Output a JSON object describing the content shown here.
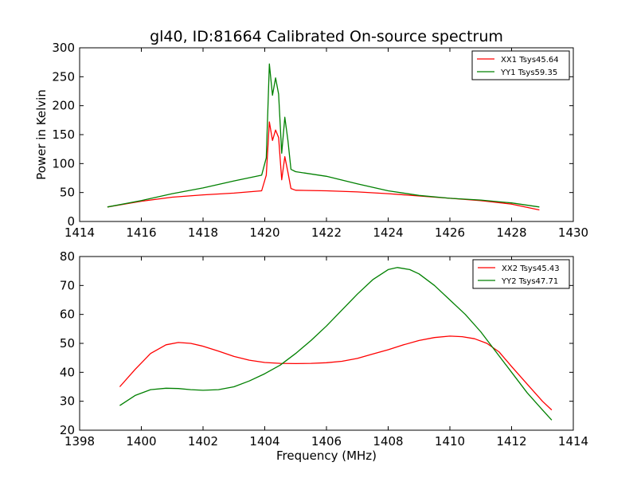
{
  "title": "gl40, ID:81664 Calibrated On-source spectrum",
  "xlabel": "Frequency (MHz)",
  "chart_data": [
    {
      "type": "line",
      "title": "gl40, ID:81664 Calibrated On-source spectrum",
      "xlabel": "",
      "ylabel": "Power in Kelvin",
      "xlim": [
        1414,
        1430
      ],
      "ylim": [
        0,
        300
      ],
      "xticks": [
        1414,
        1416,
        1418,
        1420,
        1422,
        1424,
        1426,
        1428,
        1430
      ],
      "yticks": [
        0,
        50,
        100,
        150,
        200,
        250,
        300
      ],
      "grid": false,
      "legend": "top-right",
      "series": [
        {
          "name": "XX1 Tsys45.64",
          "color": "#ff0000",
          "x": [
            1414.9,
            1416,
            1417,
            1418,
            1419,
            1419.9,
            1420.05,
            1420.15,
            1420.25,
            1420.35,
            1420.45,
            1420.55,
            1420.65,
            1420.75,
            1420.85,
            1421,
            1422,
            1423,
            1424,
            1425,
            1426,
            1427,
            1428,
            1428.9
          ],
          "y": [
            25,
            35,
            42,
            46,
            49,
            53,
            80,
            172,
            140,
            158,
            145,
            72,
            112,
            85,
            57,
            54,
            53,
            51,
            48,
            44,
            40,
            36,
            30,
            20
          ]
        },
        {
          "name": "YY1 Tsys59.35",
          "color": "#008000",
          "x": [
            1414.9,
            1416,
            1417,
            1418,
            1419,
            1419.9,
            1420.05,
            1420.15,
            1420.25,
            1420.35,
            1420.45,
            1420.55,
            1420.65,
            1420.75,
            1420.85,
            1421,
            1422,
            1423,
            1424,
            1425,
            1426,
            1427,
            1428,
            1428.9
          ],
          "y": [
            25,
            36,
            48,
            58,
            70,
            80,
            110,
            272,
            218,
            248,
            220,
            118,
            180,
            140,
            90,
            86,
            78,
            65,
            53,
            45,
            40,
            37,
            32,
            25
          ]
        }
      ]
    },
    {
      "type": "line",
      "title": "",
      "xlabel": "Frequency (MHz)",
      "ylabel": "",
      "xlim": [
        1398,
        1414
      ],
      "ylim": [
        20,
        80
      ],
      "xticks": [
        1398,
        1400,
        1402,
        1404,
        1406,
        1408,
        1410,
        1412,
        1414
      ],
      "yticks": [
        20,
        30,
        40,
        50,
        60,
        70,
        80
      ],
      "grid": false,
      "legend": "top-right",
      "series": [
        {
          "name": "XX2 Tsys45.43",
          "color": "#ff0000",
          "x": [
            1399.3,
            1399.8,
            1400.3,
            1400.8,
            1401.2,
            1401.6,
            1402,
            1402.5,
            1403,
            1403.5,
            1404,
            1404.5,
            1405,
            1405.5,
            1406,
            1406.5,
            1407,
            1407.5,
            1408,
            1408.5,
            1409,
            1409.5,
            1410,
            1410.4,
            1410.8,
            1411.2,
            1411.6,
            1412,
            1412.5,
            1413,
            1413.3
          ],
          "y": [
            35,
            41,
            46.5,
            49.5,
            50.3,
            50,
            49,
            47.3,
            45.5,
            44.2,
            43.4,
            43.1,
            43,
            43.1,
            43.3,
            43.8,
            44.8,
            46.3,
            47.8,
            49.5,
            51,
            52,
            52.5,
            52.3,
            51.6,
            50,
            47,
            42,
            36,
            30,
            27
          ]
        },
        {
          "name": "YY2 Tsys47.71",
          "color": "#008000",
          "x": [
            1399.3,
            1399.8,
            1400.3,
            1400.8,
            1401.2,
            1401.6,
            1402,
            1402.5,
            1403,
            1403.5,
            1404,
            1404.5,
            1405,
            1405.5,
            1406,
            1406.5,
            1407,
            1407.5,
            1408,
            1408.3,
            1408.7,
            1409,
            1409.5,
            1410,
            1410.5,
            1411,
            1411.5,
            1412,
            1412.5,
            1413,
            1413.3
          ],
          "y": [
            28.5,
            32,
            34,
            34.5,
            34.4,
            34,
            33.8,
            34,
            35,
            37,
            39.5,
            42.5,
            46.5,
            51,
            56,
            61.5,
            67,
            72,
            75.5,
            76.2,
            75.5,
            74,
            70,
            65,
            60,
            54,
            47,
            40,
            33,
            27,
            23.5
          ]
        }
      ]
    }
  ]
}
